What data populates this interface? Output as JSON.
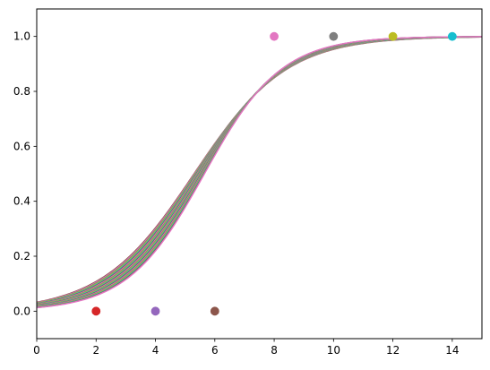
{
  "chart_data": {
    "type": "line",
    "title": "",
    "xlabel": "",
    "ylabel": "",
    "xlim": [
      0,
      15
    ],
    "ylim": [
      -0.1,
      1.1
    ],
    "x_ticks": [
      0,
      2,
      4,
      6,
      8,
      10,
      12,
      14
    ],
    "x_tick_labels": [
      "0",
      "2",
      "4",
      "6",
      "8",
      "10",
      "12",
      "14"
    ],
    "y_ticks": [
      0.0,
      0.2,
      0.4,
      0.6,
      0.8,
      1.0
    ],
    "y_tick_labels": [
      "0.0",
      "0.2",
      "0.4",
      "0.6",
      "0.8",
      "1.0"
    ],
    "grid": false,
    "legend": "none",
    "curve_colors": [
      "#8c564b",
      "#e377c2",
      "#7f7f7f",
      "#bcbd22",
      "#17becf"
    ],
    "curves": {
      "count": 22,
      "family": "logistic",
      "x0_range": [
        5.3,
        5.65
      ],
      "k_range": [
        0.64,
        0.77
      ]
    },
    "points": [
      {
        "x": 2,
        "y": 0,
        "color": "#d62728"
      },
      {
        "x": 4,
        "y": 0,
        "color": "#9467bd"
      },
      {
        "x": 6,
        "y": 0,
        "color": "#8c564b"
      },
      {
        "x": 8,
        "y": 1,
        "color": "#e377c2"
      },
      {
        "x": 10,
        "y": 1,
        "color": "#7f7f7f"
      },
      {
        "x": 12,
        "y": 1,
        "color": "#bcbd22"
      },
      {
        "x": 14,
        "y": 1,
        "color": "#17becf"
      }
    ]
  }
}
